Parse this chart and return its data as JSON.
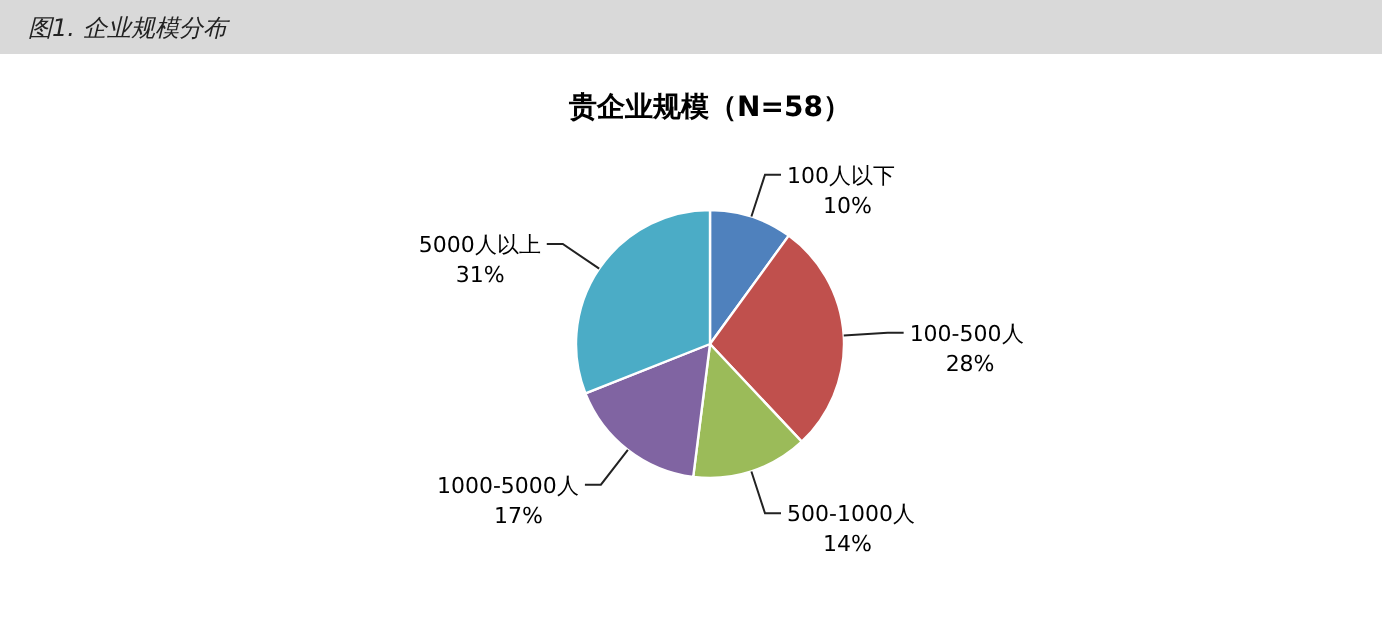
{
  "chart_data": {
    "type": "pie",
    "title": "贵企业规模（N=58）",
    "annotations": [
      "图1.  企业规模分布"
    ],
    "categories": [
      "100人以下",
      "100-500人",
      "500-1000人",
      "1000-5000人",
      "5000人以上"
    ],
    "values": [
      10,
      28,
      14,
      17,
      31
    ],
    "value_labels": [
      "10%",
      "28%",
      "14%",
      "17%",
      "31%"
    ],
    "colors": [
      "#4f81bd",
      "#c0504d",
      "#9bbb59",
      "#8064a2",
      "#4bacc6"
    ]
  }
}
